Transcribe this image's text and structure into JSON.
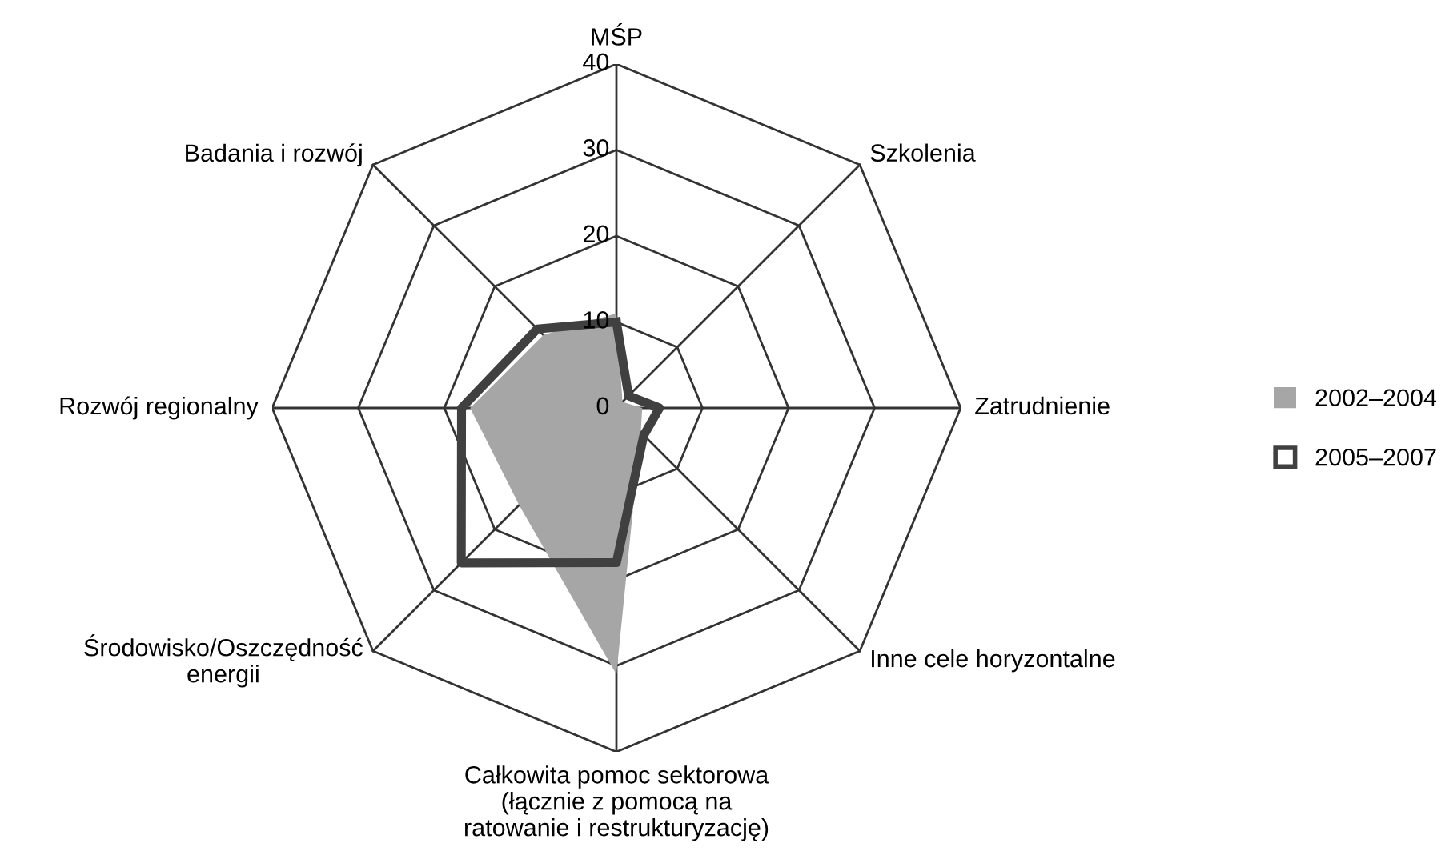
{
  "chart_data": {
    "type": "radar",
    "categories": [
      "MŚP",
      "Szkolenia",
      "Zatrudnienie",
      "Inne cele horyzontalne",
      "Całkowita pomoc sektorowa\n(łącznie z pomocą na\nratowanie i restrukturyzację)",
      "Środowisko/Oszczędność\nenergii",
      "Rozwój regionalny",
      "Badania i rozwój"
    ],
    "series": [
      {
        "name": "2002–2004",
        "color": "#a6a6a6",
        "values": [
          11,
          1,
          3,
          4,
          31,
          16,
          17,
          12
        ]
      },
      {
        "name": "2005–2007",
        "color": "#404040",
        "values": [
          10,
          2,
          5,
          4.5,
          18,
          25.5,
          18,
          13
        ]
      }
    ],
    "ylim": [
      0,
      40
    ],
    "yticks": [
      0,
      10,
      20,
      30,
      40
    ],
    "grid": true,
    "legend": "right"
  }
}
